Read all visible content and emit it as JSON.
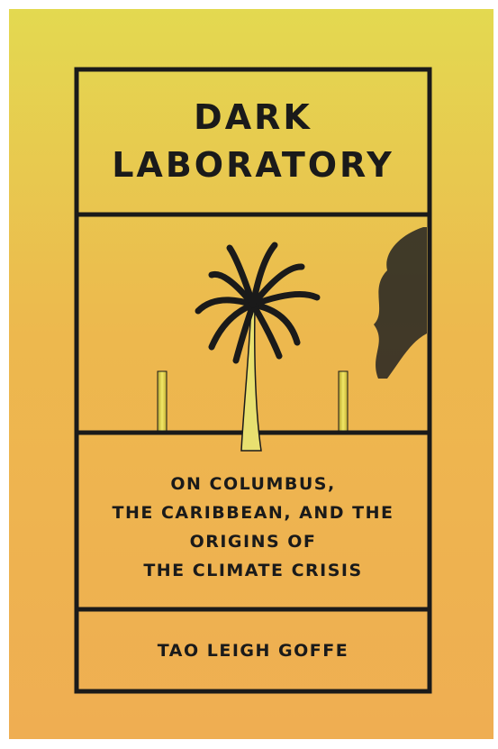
{
  "cover": {
    "title": [
      "DARK",
      "LABORATORY"
    ],
    "subtitle": [
      "ON COLUMBUS,",
      "THE CARIBBEAN, AND THE",
      "ORIGINS OF",
      "THE CLIMATE CRISIS"
    ],
    "author": "TAO LEIGH GOFFE"
  }
}
